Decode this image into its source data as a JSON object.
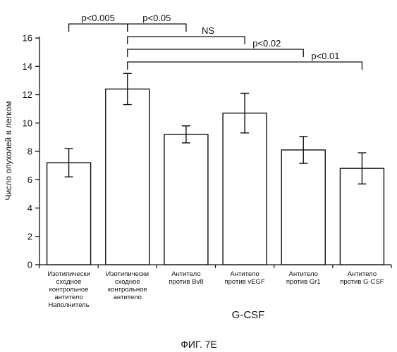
{
  "chart_data": {
    "type": "bar",
    "categories": [
      [
        "Изотипически",
        "сходное",
        "контрольное",
        "антитело",
        "Наполнитель"
      ],
      [
        "Изотипически",
        "сходное",
        "контрольное",
        "антитело"
      ],
      [
        "Антитело",
        "против Bv8"
      ],
      [
        "Антитело",
        "против vEGF"
      ],
      [
        "Антитело",
        "против Gr1"
      ],
      [
        "Антитело",
        "против G-CSF"
      ]
    ],
    "values": [
      7.2,
      12.4,
      9.2,
      10.7,
      8.1,
      6.8
    ],
    "errors": [
      1.0,
      1.1,
      0.6,
      1.4,
      0.95,
      1.1
    ],
    "ylabel": "Число опухолей в легком",
    "xlabel": "G-CSF",
    "ylim": [
      0,
      16
    ],
    "yticks": [
      0,
      2,
      4,
      6,
      8,
      10,
      12,
      14,
      16
    ],
    "significance": [
      {
        "from": 0,
        "to": 1,
        "label": "p<0.005"
      },
      {
        "from": 1,
        "to": 2,
        "label": "p<0.05"
      },
      {
        "from": 1,
        "to": 3,
        "label": "NS"
      },
      {
        "from": 1,
        "to": 4,
        "label": "p<0.02"
      },
      {
        "from": 1,
        "to": 5,
        "label": "p<0.01"
      }
    ],
    "grid": false,
    "legend": "none"
  },
  "caption": "ФИГ. 7E"
}
